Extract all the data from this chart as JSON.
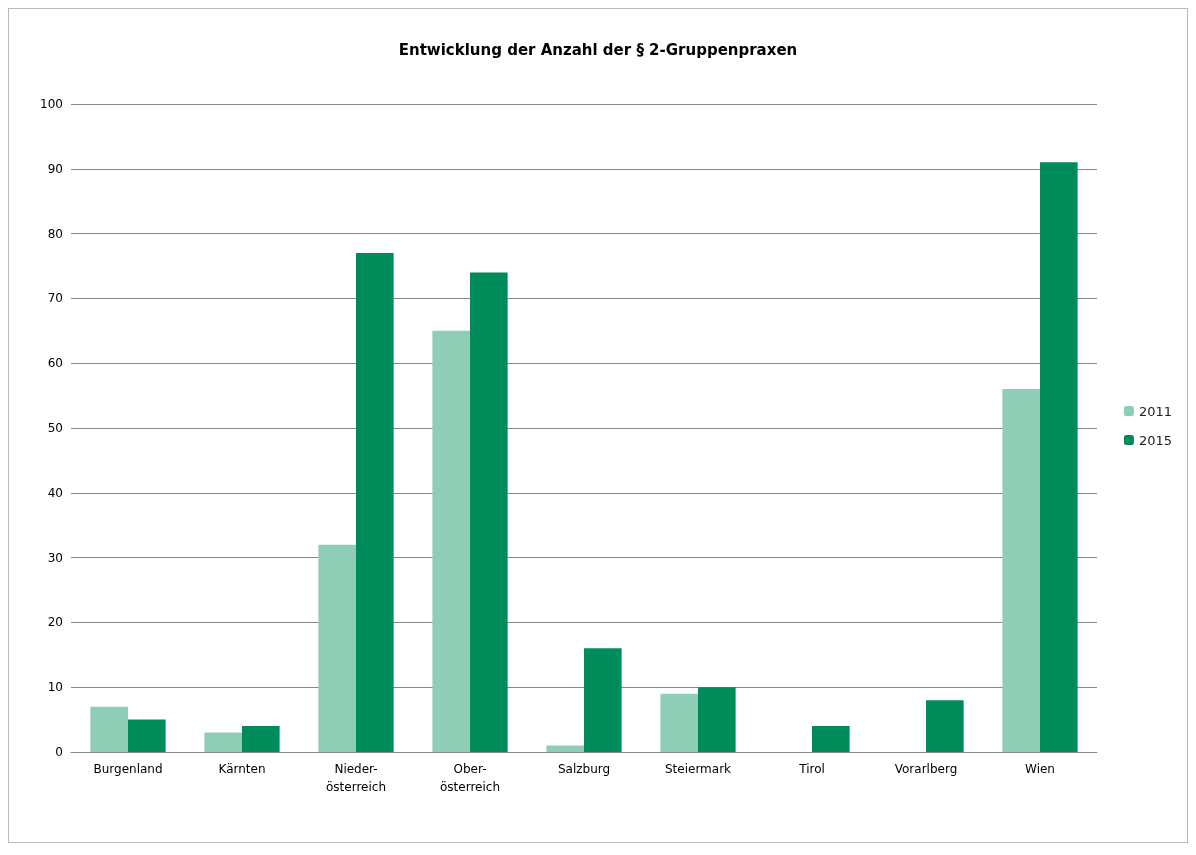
{
  "chart_data": {
    "type": "bar",
    "title": "Entwicklung der Anzahl der § 2-Gruppenpraxen",
    "categories": [
      "Burgenland",
      "Kärnten",
      "Nieder-\nösterreich",
      "Ober-\nösterreich",
      "Salzburg",
      "Steiermark",
      "Tirol",
      "Vorarlberg",
      "Wien"
    ],
    "series": [
      {
        "name": "2011",
        "color": "#8fceb6",
        "values": [
          7,
          3,
          32,
          65,
          1,
          9,
          0,
          0,
          56
        ]
      },
      {
        "name": "2015",
        "color": "#008c5a",
        "values": [
          5,
          4,
          77,
          74,
          16,
          10,
          4,
          8,
          91
        ]
      }
    ],
    "ylim": [
      0,
      100
    ],
    "yticks": [
      0,
      10,
      20,
      30,
      40,
      50,
      60,
      70,
      80,
      90,
      100
    ],
    "grid": "y",
    "legend": "right"
  }
}
